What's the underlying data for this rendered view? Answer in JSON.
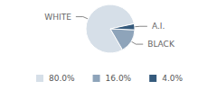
{
  "chart_data": {
    "type": "pie",
    "categories": [
      "WHITE",
      "BLACK",
      "A.I."
    ],
    "values": [
      80,
      16,
      4
    ],
    "value_labels": [
      "80.0%",
      "16.0%",
      "4.0%"
    ],
    "colors": [
      "#d6dfe8",
      "#8ea4ba",
      "#355a7c"
    ],
    "legend": "bottom"
  }
}
